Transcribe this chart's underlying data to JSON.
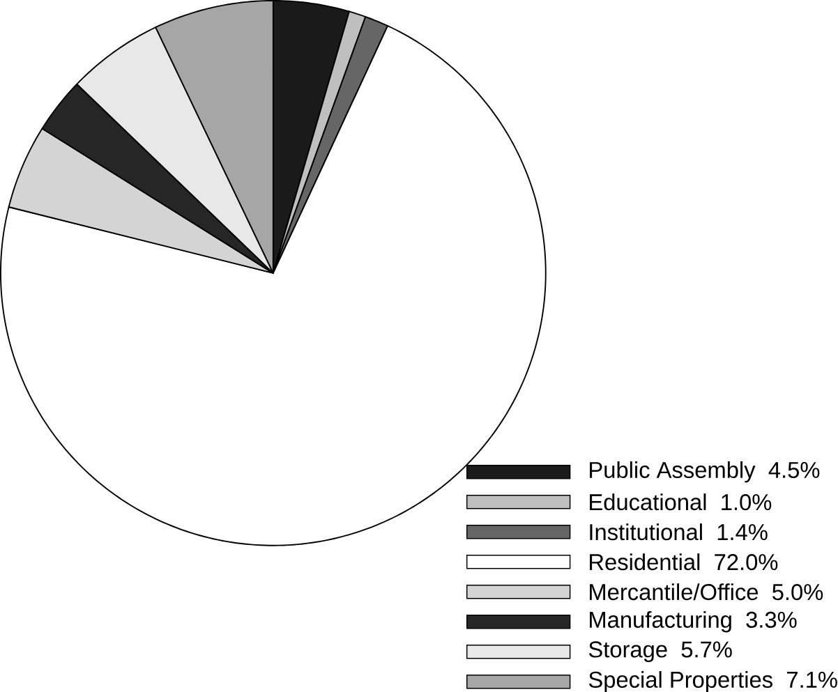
{
  "chart_data": {
    "type": "pie",
    "categories": [
      "Public Assembly",
      "Educational",
      "Institutional",
      "Residential",
      "Mercantile/Office",
      "Manufacturing",
      "Storage",
      "Special Properties"
    ],
    "values": [
      4.5,
      1.0,
      1.4,
      72.0,
      5.0,
      3.3,
      5.7,
      7.1
    ],
    "value_labels": [
      "4.5%",
      "1.0%",
      "1.4%",
      "72.0%",
      "5.0%",
      "3.3%",
      "5.7%",
      "7.1%"
    ],
    "colors": [
      "#1a1a1a",
      "#bfbfbf",
      "#666666",
      "#ffffff",
      "#d4d4d4",
      "#262626",
      "#e8e8e8",
      "#a6a6a6"
    ],
    "legend": "bottom right"
  }
}
